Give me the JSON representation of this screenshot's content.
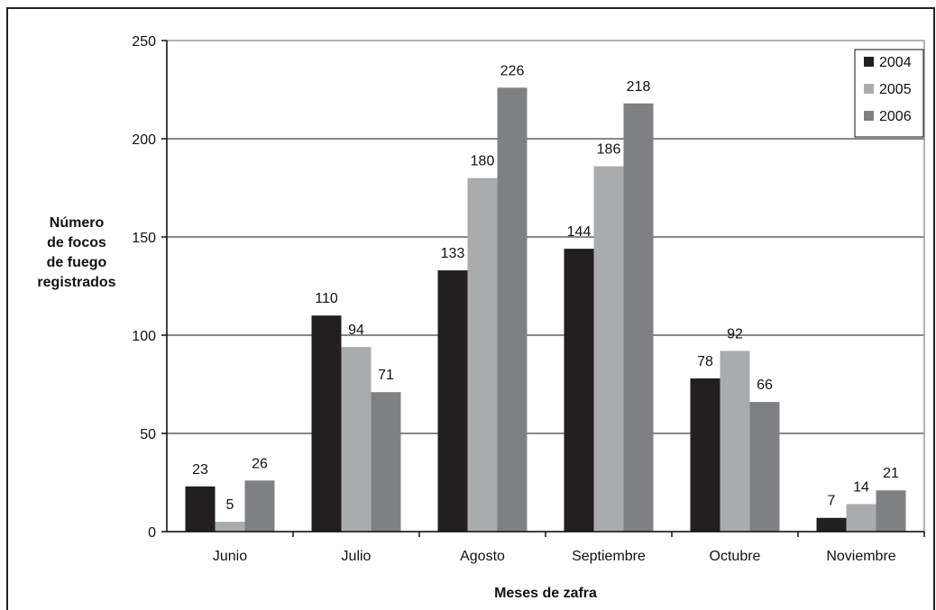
{
  "chart_data": {
    "type": "bar",
    "categories": [
      "Junio",
      "Julio",
      "Agosto",
      "Septiembre",
      "Octubre",
      "Noviembre"
    ],
    "series": [
      {
        "name": "2004",
        "color": "#231f20",
        "values": [
          23,
          110,
          133,
          144,
          78,
          7
        ]
      },
      {
        "name": "2005",
        "color": "#aaabad",
        "values": [
          5,
          94,
          180,
          186,
          92,
          14
        ]
      },
      {
        "name": "2006",
        "color": "#7f8083",
        "values": [
          26,
          71,
          226,
          218,
          66,
          21
        ]
      }
    ],
    "xlabel": "Meses de zafra",
    "ylabel": [
      "Número",
      "de focos",
      "de fuego",
      "registrados"
    ],
    "ylim": [
      0,
      250
    ],
    "yticks": [
      0,
      50,
      100,
      150,
      200,
      250
    ],
    "grid": true,
    "legend": "top-right"
  }
}
